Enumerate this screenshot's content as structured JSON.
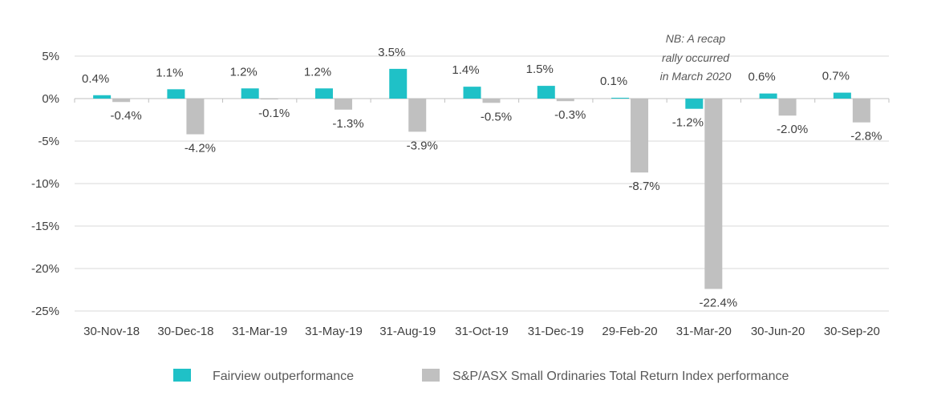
{
  "chart_data": {
    "type": "bar",
    "categories": [
      "30-Nov-18",
      "30-Dec-18",
      "31-Mar-19",
      "31-May-19",
      "31-Aug-19",
      "31-Oct-19",
      "31-Dec-19",
      "29-Feb-20",
      "31-Mar-20",
      "30-Jun-20",
      "30-Sep-20"
    ],
    "series": [
      {
        "name": "Fairview outperformance",
        "color": "#1fc1c7",
        "values": [
          0.4,
          1.1,
          1.2,
          1.2,
          3.5,
          1.4,
          1.5,
          0.1,
          -1.2,
          0.6,
          0.7
        ],
        "labels": [
          "0.4%",
          "1.1%",
          "1.2%",
          "1.2%",
          "3.5%",
          "1.4%",
          "1.5%",
          "0.1%",
          "-1.2%",
          "0.6%",
          "0.7%"
        ]
      },
      {
        "name": "S&P/ASX Small Ordinaries Total Return Index performance",
        "color": "#c0c0c0",
        "values": [
          -0.4,
          -4.2,
          -0.1,
          -1.3,
          -3.9,
          -0.5,
          -0.3,
          -8.7,
          -22.4,
          -2.0,
          -2.8
        ],
        "labels": [
          "-0.4%",
          "-4.2%",
          "-0.1%",
          "-1.3%",
          "-3.9%",
          "-0.5%",
          "-0.3%",
          "-8.7%",
          "-22.4%",
          "-2.0%",
          "-2.8%"
        ]
      }
    ],
    "ylim": [
      -25,
      5
    ],
    "yticks": [
      5,
      0,
      -5,
      -10,
      -15,
      -20,
      -25
    ],
    "ytick_labels": [
      "5%",
      "0%",
      "-5%",
      "-10%",
      "-15%",
      "-20%",
      "-25%"
    ],
    "grid": true,
    "legend_position": "bottom",
    "annotation": {
      "lines": [
        "NB: A recap",
        "rally occurred",
        "in March 2020"
      ],
      "category": "31-Mar-20"
    }
  }
}
